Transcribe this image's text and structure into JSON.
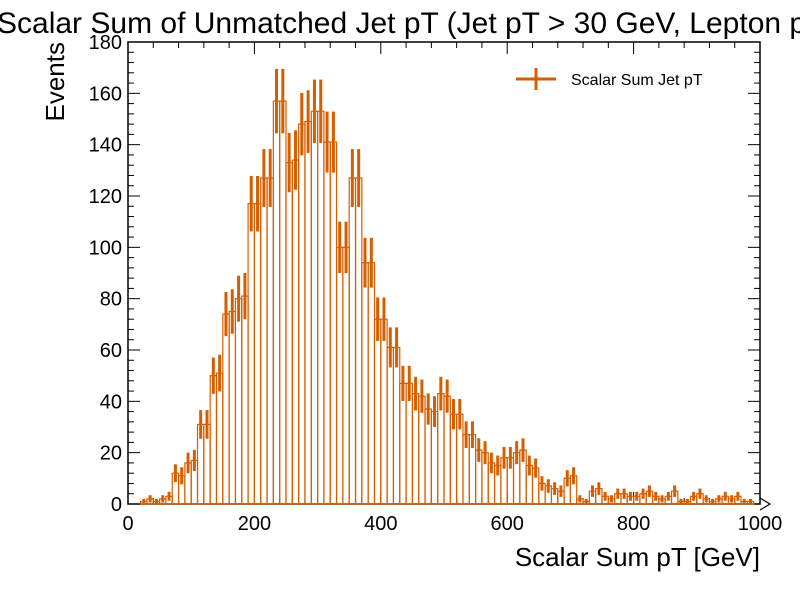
{
  "chart_data": {
    "type": "histogram",
    "title": "Scalar Sum of Unmatched Jet pT (Jet pT > 30 GeV, Lepton p",
    "xlabel": "Scalar Sum pT [GeV]",
    "ylabel": "Events",
    "xlim": [
      0,
      1000
    ],
    "ylim": [
      0,
      180
    ],
    "xticks": [
      "0",
      "200",
      "400",
      "600",
      "800",
      "1000"
    ],
    "yticks": [
      "0",
      "20",
      "40",
      "60",
      "80",
      "100",
      "120",
      "140",
      "160",
      "180"
    ],
    "bin_width": 10,
    "x_start": 0,
    "counts": [
      0,
      0,
      1,
      2,
      1,
      2,
      3,
      12,
      11,
      16,
      17,
      31,
      31,
      50,
      51,
      74,
      75,
      80,
      81,
      117,
      117,
      127,
      127,
      157,
      157,
      133,
      134,
      148,
      149,
      153,
      153,
      141,
      141,
      100,
      100,
      127,
      127,
      94,
      94,
      72,
      72,
      61,
      61,
      47,
      47,
      43,
      42,
      37,
      36,
      43,
      42,
      35,
      35,
      27,
      27,
      21,
      20,
      16,
      15,
      18,
      18,
      20,
      21,
      15,
      14,
      8,
      7,
      6,
      5,
      10,
      11,
      2,
      1,
      5,
      6,
      3,
      2,
      4,
      4,
      3,
      3,
      4,
      5,
      3,
      2,
      3,
      5,
      1,
      1,
      3,
      4,
      2,
      1,
      2,
      3,
      2,
      3,
      1,
      1,
      0
    ],
    "legend": [
      "Scalar Sum Jet pT"
    ],
    "legend_position": "top-right",
    "color": "#d55e00",
    "grid": false
  }
}
